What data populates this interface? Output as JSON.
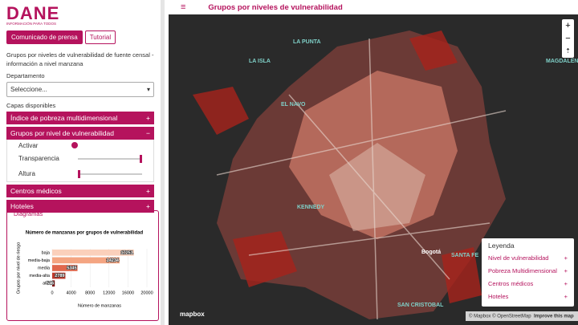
{
  "sidebar": {
    "logo": "DANE",
    "logo_tagline": "INFORMACIÓN PARA TODOS",
    "buttons": [
      "Comunicado de prensa",
      "Tutorial"
    ],
    "description": "Grupos por niveles de vulnerabilidad de fuente censal - información a nivel manzana",
    "department_label": "Departamento",
    "department_placeholder": "Seleccione...",
    "layers_label": "Capas disponibles",
    "layers": [
      {
        "title": "Índice de pobreza multidimensional",
        "toggle": "+"
      },
      {
        "title": "Grupos por nivel de vulnerabilidad",
        "toggle": "−"
      },
      {
        "title": "Centros médicos",
        "toggle": "+"
      },
      {
        "title": "Hoteles",
        "toggle": "+"
      }
    ],
    "controls": [
      "Activar",
      "Transparencia",
      "Altura"
    ],
    "diagrams_label": "Diagramas"
  },
  "header": {
    "title": "Grupos por niveles de vulnerabilidad"
  },
  "map": {
    "labels": [
      "LA PUNTA",
      "LA ISLA",
      "EL NAVO",
      "MAGDALENA",
      "KENNEDY",
      "SANTA FE",
      "Bogotá",
      "SAN CRISTOBAL"
    ],
    "zoom": [
      "+",
      "−"
    ],
    "attribution": "© Mapbox © OpenStreetMap",
    "improve": "Improve this map",
    "brand": "mapbox"
  },
  "legend": {
    "title": "Leyenda",
    "items": [
      "Nivel de vulnerabilidad",
      "Pobreza Multidimensional",
      "Centros médicos",
      "Hoteles"
    ],
    "toggle": "+"
  },
  "chart_data": {
    "type": "hbar",
    "title": "Número de manzanas por grupos de vulnerabilidad",
    "xlabel": "Número de manzanas",
    "ylabel": "Grupos por nivel de riesgo",
    "categories": [
      "baja",
      "media-baja",
      "media",
      "media-alta",
      "alta"
    ],
    "values": [
      17251,
      14234,
      5345,
      2789,
      546
    ],
    "colors": [
      "#fbd0bb",
      "#f4a582",
      "#e0674d",
      "#c0392b",
      "#7f0a0a"
    ],
    "xlim": [
      0,
      20000
    ],
    "xticks": [
      0,
      4000,
      8000,
      12000,
      16000,
      20000
    ]
  }
}
